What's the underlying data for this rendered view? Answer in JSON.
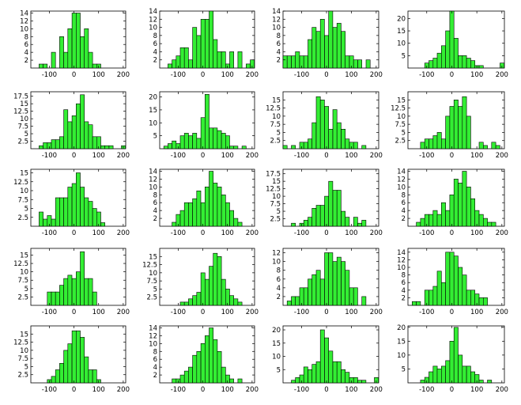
{
  "chart_data": [
    {
      "type": "bar",
      "title": "",
      "xlabel": "",
      "ylabel": "",
      "xlim": [
        -175,
        210
      ],
      "ylim": [
        0,
        14.5
      ],
      "xticks": [
        -100,
        0,
        100,
        200
      ],
      "yticks": [
        2,
        4,
        6,
        8,
        10,
        12,
        14
      ],
      "bin_width": 16.7,
      "bin_start": -175,
      "values": [
        0,
        0,
        1,
        1,
        0,
        4,
        0,
        8,
        4,
        10,
        14,
        14,
        8,
        10,
        4,
        1,
        1,
        0,
        0,
        0,
        0,
        0,
        0
      ]
    },
    {
      "type": "bar",
      "title": "",
      "xlabel": "",
      "ylabel": "",
      "xlim": [
        -175,
        210
      ],
      "ylim": [
        0,
        14
      ],
      "xticks": [
        -100,
        0,
        100,
        200
      ],
      "yticks": [
        2,
        4,
        6,
        8,
        10,
        12,
        14
      ],
      "bin_width": 16.7,
      "bin_start": -175,
      "values": [
        0,
        0,
        1,
        2,
        3,
        5,
        5,
        2,
        10,
        8,
        12,
        12,
        14,
        7,
        4,
        4,
        1,
        4,
        0,
        4,
        0,
        1,
        2
      ]
    },
    {
      "type": "bar",
      "title": "",
      "xlabel": "",
      "ylabel": "",
      "xlim": [
        -175,
        210
      ],
      "ylim": [
        0,
        14
      ],
      "xticks": [
        -100,
        0,
        100,
        200
      ],
      "yticks": [
        2,
        4,
        6,
        8,
        10,
        12,
        14
      ],
      "bin_width": 16.7,
      "bin_start": -175,
      "values": [
        3,
        3,
        3,
        4,
        3,
        3,
        7,
        10,
        9,
        12,
        8,
        14,
        10,
        11,
        9,
        3,
        3,
        2,
        2,
        0,
        2,
        0,
        0
      ]
    },
    {
      "type": "bar",
      "title": "",
      "xlabel": "",
      "ylabel": "",
      "xlim": [
        -175,
        210
      ],
      "ylim": [
        0,
        23
      ],
      "xticks": [
        -100,
        0,
        100,
        200
      ],
      "yticks": [
        5,
        10,
        15,
        20
      ],
      "bin_width": 16.7,
      "bin_start": -175,
      "values": [
        0,
        0,
        0,
        0,
        2,
        3,
        4,
        6,
        9,
        15,
        23,
        12,
        5,
        5,
        4,
        3,
        1,
        1,
        0,
        0,
        0,
        0,
        2
      ]
    },
    {
      "type": "bar",
      "title": "",
      "xlabel": "",
      "ylabel": "",
      "xlim": [
        -175,
        210
      ],
      "ylim": [
        0,
        19
      ],
      "xticks": [
        -100,
        0,
        100,
        200
      ],
      "yticks": [
        2.5,
        5,
        7.5,
        10,
        12.5,
        15,
        17.5
      ],
      "bin_width": 16.7,
      "bin_start": -175,
      "values": [
        0,
        0,
        1,
        2,
        2,
        3,
        3,
        4,
        13,
        9,
        11,
        15,
        18,
        9,
        8,
        4,
        4,
        1,
        1,
        1,
        0,
        0,
        1
      ]
    },
    {
      "type": "bar",
      "title": "",
      "xlabel": "",
      "ylabel": "",
      "xlim": [
        -175,
        210
      ],
      "ylim": [
        0,
        22
      ],
      "xticks": [
        -100,
        0,
        100,
        200
      ],
      "yticks": [
        5,
        10,
        15,
        20
      ],
      "bin_width": 16.7,
      "bin_start": -175,
      "values": [
        0,
        1,
        2,
        3,
        2,
        5,
        6,
        5,
        6,
        4,
        12,
        21,
        8,
        8,
        7,
        6,
        5,
        1,
        1,
        0,
        1,
        0,
        0
      ]
    },
    {
      "type": "bar",
      "title": "",
      "xlabel": "",
      "ylabel": "",
      "xlim": [
        -175,
        210
      ],
      "ylim": [
        0,
        17.5
      ],
      "xticks": [
        -100,
        0,
        100,
        200
      ],
      "yticks": [
        2.5,
        5,
        7.5,
        10,
        12.5,
        15
      ],
      "bin_width": 16.7,
      "bin_start": -175,
      "values": [
        1,
        0,
        1,
        0,
        2,
        2,
        3,
        8,
        16,
        15,
        13,
        6,
        12,
        8,
        6,
        3,
        2,
        2,
        0,
        1,
        0,
        0,
        0
      ]
    },
    {
      "type": "bar",
      "title": "",
      "xlabel": "",
      "ylabel": "",
      "xlim": [
        -175,
        210
      ],
      "ylim": [
        0,
        17.5
      ],
      "xticks": [
        -100,
        0,
        100,
        200
      ],
      "yticks": [
        2.5,
        5,
        7.5,
        10,
        12.5,
        15
      ],
      "bin_width": 16.7,
      "bin_start": -175,
      "values": [
        0,
        0,
        0,
        2,
        3,
        3,
        4,
        5,
        3,
        10,
        13,
        15,
        13,
        16,
        10,
        0,
        0,
        2,
        1,
        0,
        2,
        1,
        0
      ]
    },
    {
      "type": "bar",
      "title": "",
      "xlabel": "",
      "ylabel": "",
      "xlim": [
        -175,
        210
      ],
      "ylim": [
        0,
        16
      ],
      "xticks": [
        -100,
        0,
        100,
        200
      ],
      "yticks": [
        2.5,
        5,
        7.5,
        10,
        12.5,
        15
      ],
      "bin_width": 16.7,
      "bin_start": -175,
      "values": [
        0,
        0,
        4,
        2,
        3,
        2,
        8,
        8,
        8,
        11,
        12,
        15,
        11,
        8,
        7,
        5,
        4,
        1,
        0,
        0,
        0,
        0,
        0
      ]
    },
    {
      "type": "bar",
      "title": "",
      "xlabel": "",
      "ylabel": "",
      "xlim": [
        -175,
        210
      ],
      "ylim": [
        0,
        14.5
      ],
      "xticks": [
        -100,
        0,
        100,
        200
      ],
      "yticks": [
        2,
        4,
        6,
        8,
        10,
        12,
        14
      ],
      "bin_width": 16.7,
      "bin_start": -175,
      "values": [
        0,
        0,
        0,
        1,
        3,
        4,
        6,
        6,
        7,
        9,
        6,
        10,
        14,
        11,
        10,
        8,
        6,
        4,
        2,
        1,
        0,
        0,
        0
      ]
    },
    {
      "type": "bar",
      "title": "",
      "xlabel": "",
      "ylabel": "",
      "xlim": [
        -175,
        210
      ],
      "ylim": [
        0,
        19
      ],
      "xticks": [
        -100,
        0,
        100,
        200
      ],
      "yticks": [
        2.5,
        5,
        7.5,
        10,
        12.5,
        15,
        17.5
      ],
      "bin_width": 16.7,
      "bin_start": -175,
      "values": [
        0,
        0,
        1,
        0,
        1,
        2,
        3,
        6,
        7,
        7,
        10,
        15,
        12,
        12,
        5,
        3,
        0,
        3,
        1,
        2,
        0,
        0,
        0
      ]
    },
    {
      "type": "bar",
      "title": "",
      "xlabel": "",
      "ylabel": "",
      "xlim": [
        -175,
        210
      ],
      "ylim": [
        0,
        14.5
      ],
      "xticks": [
        -100,
        0,
        100,
        200
      ],
      "yticks": [
        2,
        4,
        6,
        8,
        10,
        12,
        14
      ],
      "bin_width": 16.7,
      "bin_start": -175,
      "values": [
        0,
        0,
        1,
        2,
        3,
        3,
        4,
        3,
        6,
        4,
        8,
        12,
        11,
        14,
        10,
        7,
        4,
        3,
        2,
        1,
        1,
        0,
        0
      ]
    },
    {
      "type": "bar",
      "title": "",
      "xlabel": "",
      "ylabel": "",
      "xlim": [
        -175,
        210
      ],
      "ylim": [
        0,
        17
      ],
      "xticks": [
        -100,
        0,
        100,
        200
      ],
      "yticks": [
        2.5,
        5,
        7.5,
        10,
        12.5,
        15
      ],
      "bin_width": 16.7,
      "bin_start": -175,
      "values": [
        0,
        0,
        0,
        0,
        4,
        4,
        4,
        6,
        8,
        9,
        8,
        10,
        16,
        8,
        8,
        4,
        0,
        0,
        0,
        0,
        0,
        0,
        0
      ]
    },
    {
      "type": "bar",
      "title": "",
      "xlabel": "",
      "ylabel": "",
      "xlim": [
        -175,
        210
      ],
      "ylim": [
        0,
        17.5
      ],
      "xticks": [
        -100,
        0,
        100,
        200
      ],
      "yticks": [
        2.5,
        5,
        7.5,
        10,
        12.5,
        15
      ],
      "bin_width": 16.7,
      "bin_start": -175,
      "values": [
        0,
        0,
        0,
        0,
        0,
        1,
        1,
        2,
        3,
        4,
        10,
        8,
        12,
        16,
        15,
        8,
        5,
        3,
        2,
        1,
        0,
        0,
        0
      ]
    },
    {
      "type": "bar",
      "title": "",
      "xlabel": "",
      "ylabel": "",
      "xlim": [
        -175,
        210
      ],
      "ylim": [
        0,
        13
      ],
      "xticks": [
        -100,
        0,
        100,
        200
      ],
      "yticks": [
        2,
        4,
        6,
        8,
        10,
        12
      ],
      "bin_width": 16.7,
      "bin_start": -175,
      "values": [
        0,
        1,
        2,
        2,
        4,
        4,
        6,
        7,
        8,
        6,
        12,
        12,
        10,
        11,
        10,
        8,
        4,
        4,
        0,
        2,
        0,
        0,
        0
      ]
    },
    {
      "type": "bar",
      "title": "",
      "xlabel": "",
      "ylabel": "",
      "xlim": [
        -175,
        210
      ],
      "ylim": [
        0,
        15
      ],
      "xticks": [
        -100,
        0,
        100,
        200
      ],
      "yticks": [
        2,
        4,
        6,
        8,
        10,
        12,
        14
      ],
      "bin_width": 16.7,
      "bin_start": -175,
      "values": [
        0,
        1,
        1,
        0,
        4,
        4,
        5,
        9,
        6,
        14,
        14,
        13,
        10,
        8,
        4,
        4,
        3,
        2,
        2,
        0,
        0,
        0,
        0
      ]
    },
    {
      "type": "bar",
      "title": "",
      "xlabel": "",
      "ylabel": "",
      "xlim": [
        -175,
        210
      ],
      "ylim": [
        0,
        17.5
      ],
      "xticks": [
        -100,
        0,
        100,
        200
      ],
      "yticks": [
        2.5,
        5,
        7.5,
        10,
        12.5,
        15
      ],
      "bin_width": 16.7,
      "bin_start": -175,
      "values": [
        0,
        0,
        0,
        0,
        1,
        2,
        4,
        6,
        10,
        12,
        16,
        16,
        14,
        8,
        4,
        4,
        1,
        0,
        0,
        0,
        0,
        0,
        0
      ]
    },
    {
      "type": "bar",
      "title": "",
      "xlabel": "",
      "ylabel": "",
      "xlim": [
        -175,
        210
      ],
      "ylim": [
        0,
        14.5
      ],
      "xticks": [
        -100,
        0,
        100,
        200
      ],
      "yticks": [
        2,
        4,
        6,
        8,
        10,
        12,
        14
      ],
      "bin_width": 16.7,
      "bin_start": -175,
      "values": [
        0,
        0,
        0,
        1,
        1,
        2,
        3,
        4,
        7,
        8,
        10,
        12,
        14,
        11,
        8,
        4,
        2,
        1,
        0,
        1,
        0,
        0,
        0
      ]
    },
    {
      "type": "bar",
      "title": "",
      "xlabel": "",
      "ylabel": "",
      "xlim": [
        -175,
        210
      ],
      "ylim": [
        0,
        21.5
      ],
      "xticks": [
        -100,
        0,
        100,
        200
      ],
      "yticks": [
        5,
        10,
        15,
        20
      ],
      "bin_width": 16.7,
      "bin_start": -175,
      "values": [
        0,
        0,
        1,
        2,
        3,
        6,
        5,
        7,
        8,
        20,
        17,
        12,
        8,
        8,
        5,
        4,
        2,
        2,
        1,
        1,
        0,
        0,
        2
      ]
    },
    {
      "type": "bar",
      "title": "",
      "xlabel": "",
      "ylabel": "",
      "xlim": [
        -175,
        210
      ],
      "ylim": [
        0,
        20.5
      ],
      "xticks": [
        -100,
        0,
        100,
        200
      ],
      "yticks": [
        5,
        10,
        15,
        20
      ],
      "bin_width": 16.7,
      "bin_start": -175,
      "values": [
        0,
        0,
        0,
        1,
        2,
        4,
        6,
        5,
        6,
        8,
        15,
        20,
        10,
        6,
        6,
        4,
        3,
        1,
        0,
        1,
        0,
        0,
        0
      ]
    }
  ],
  "style": {
    "bar_fill": "#33ee33",
    "bar_stroke": "#000000",
    "axis_color": "#000000"
  }
}
